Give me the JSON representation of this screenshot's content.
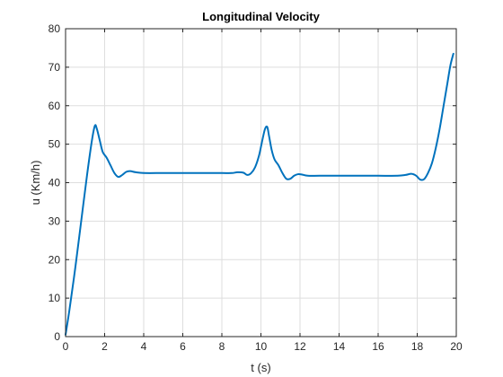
{
  "chart_data": {
    "type": "line",
    "title": "Longitudinal Velocity",
    "xlabel": "t (s)",
    "ylabel": "u (Km/h)",
    "xlim": [
      0,
      20
    ],
    "ylim": [
      0,
      80
    ],
    "xticks": [
      0,
      2,
      4,
      6,
      8,
      10,
      12,
      14,
      16,
      18,
      20
    ],
    "yticks": [
      0,
      10,
      20,
      30,
      40,
      50,
      60,
      70,
      80
    ],
    "grid": true,
    "series": [
      {
        "color": "#0072bd",
        "x": [
          0,
          0.2,
          0.5,
          0.8,
          1.1,
          1.35,
          1.5,
          1.6,
          1.75,
          1.9,
          2.1,
          2.3,
          2.5,
          2.7,
          2.9,
          3.1,
          3.3,
          3.6,
          4.0,
          5.0,
          6.0,
          7.0,
          8.0,
          8.5,
          8.8,
          9.1,
          9.3,
          9.5,
          9.7,
          9.9,
          10.05,
          10.2,
          10.32,
          10.42,
          10.55,
          10.7,
          10.9,
          11.1,
          11.3,
          11.5,
          11.7,
          11.9,
          12.1,
          12.4,
          13.0,
          14.0,
          15.0,
          16.0,
          17.0,
          17.4,
          17.7,
          17.95,
          18.15,
          18.35,
          18.55,
          18.75,
          18.95,
          19.15,
          19.35,
          19.55,
          19.7,
          19.85
        ],
        "y": [
          0.5,
          7,
          18,
          30,
          42,
          51,
          54.8,
          54,
          51,
          48,
          46.5,
          44.5,
          42.5,
          41.5,
          42,
          42.8,
          43,
          42.7,
          42.5,
          42.5,
          42.5,
          42.5,
          42.5,
          42.5,
          42.7,
          42.6,
          42,
          42.5,
          44,
          47,
          50.5,
          53.8,
          54.5,
          52,
          48.5,
          46,
          44.5,
          42.5,
          41,
          41,
          41.8,
          42.2,
          42.1,
          41.8,
          41.8,
          41.8,
          41.8,
          41.8,
          41.8,
          42,
          42.3,
          41.8,
          40.8,
          40.9,
          42.5,
          45,
          49,
          54,
          60,
          66,
          70.5,
          73.5
        ]
      }
    ]
  }
}
